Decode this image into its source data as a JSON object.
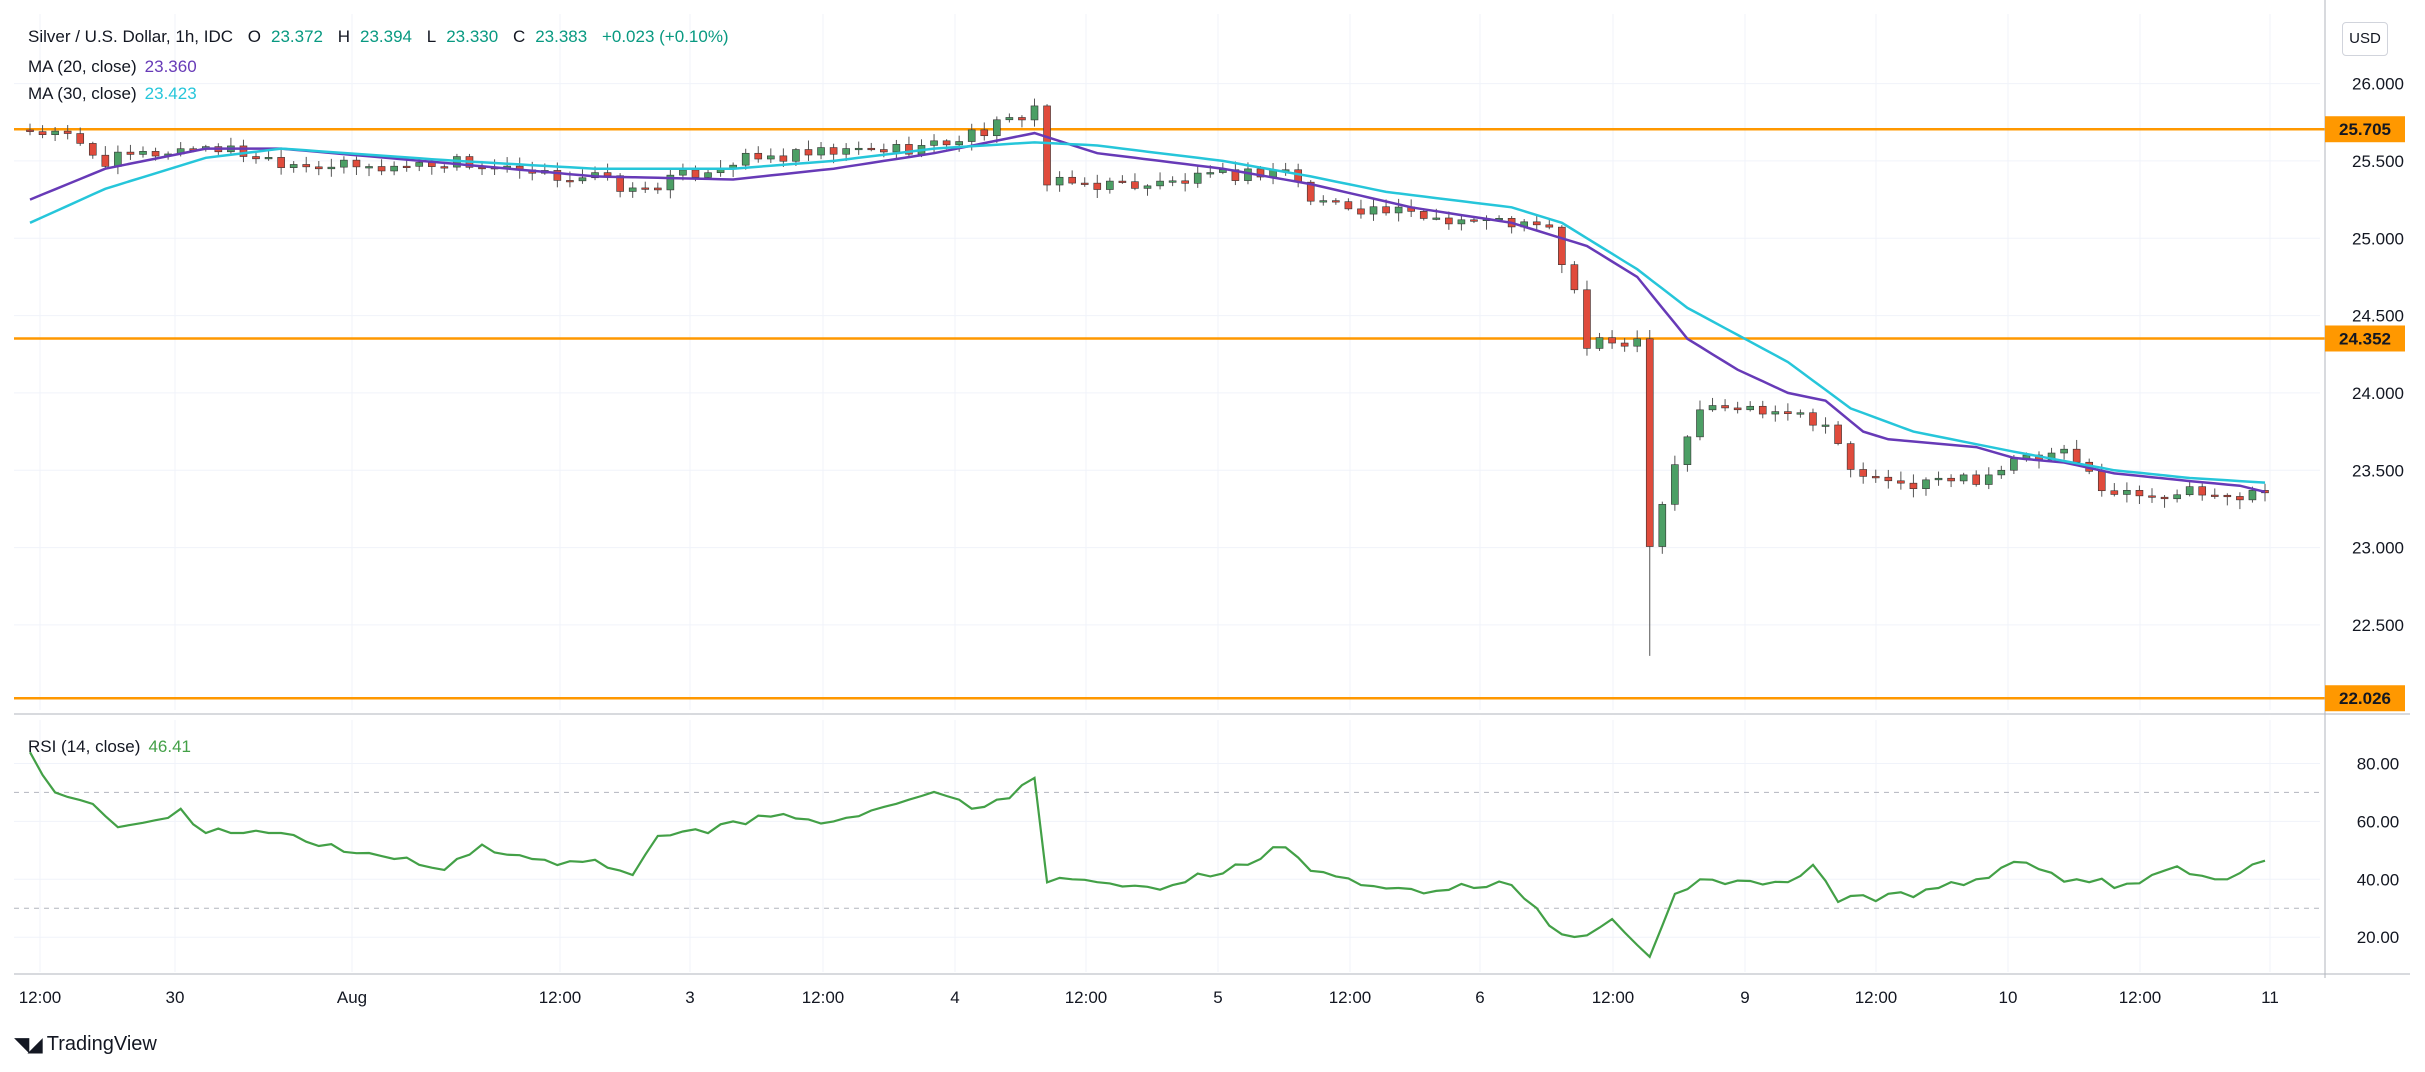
{
  "header": {
    "symbol_line": "Silver / U.S. Dollar, 1h, IDC",
    "open_label": "O",
    "open": "23.372",
    "high_label": "H",
    "high": "23.394",
    "low_label": "L",
    "low": "23.330",
    "close_label": "C",
    "close": "23.383",
    "change": "+0.023 (+0.10%)"
  },
  "ma20": {
    "label": "MA (20, close)",
    "value": "23.360",
    "color": "#673ab7"
  },
  "ma30": {
    "label": "MA (30, close)",
    "value": "23.423",
    "color": "#26c6da"
  },
  "rsi": {
    "label": "RSI (14, close)",
    "value": "46.41",
    "color": "#43a047"
  },
  "currency_button": "USD",
  "brand": "TradingView",
  "colors": {
    "up": "#4c9f65",
    "down": "#e04b3c",
    "level": "#ff9800",
    "grid": "#f0f3fa"
  },
  "chart_data": [
    {
      "type": "candlestick",
      "title": "Silver / U.S. Dollar, 1h, IDC",
      "x_ticks": [
        "12:00",
        "30",
        "Aug",
        "12:00",
        "3",
        "12:00",
        "4",
        "12:00",
        "5",
        "12:00",
        "6",
        "12:00",
        "9",
        "12:00",
        "10",
        "12:00",
        "11"
      ],
      "y_ticks": [
        "26.000",
        "25.500",
        "25.000",
        "24.500",
        "24.000",
        "23.500",
        "23.000",
        "22.500"
      ],
      "ylim": [
        21.95,
        26.45
      ],
      "levels": [
        {
          "value": 25.705,
          "label": "25.705"
        },
        {
          "value": 24.352,
          "label": "24.352"
        },
        {
          "value": 22.026,
          "label": "22.026"
        }
      ],
      "path_keypoints": [
        [
          0,
          25.7
        ],
        [
          3,
          25.65
        ],
        [
          6,
          25.5
        ],
        [
          14,
          25.6
        ],
        [
          20,
          25.5
        ],
        [
          27,
          25.45
        ],
        [
          34,
          25.5
        ],
        [
          40,
          25.4
        ],
        [
          45,
          25.4
        ],
        [
          48,
          25.3
        ],
        [
          56,
          25.5
        ],
        [
          64,
          25.55
        ],
        [
          72,
          25.6
        ],
        [
          78,
          25.75
        ],
        [
          80,
          25.85
        ],
        [
          81,
          25.35
        ],
        [
          90,
          25.35
        ],
        [
          100,
          25.45
        ],
        [
          102,
          25.25
        ],
        [
          110,
          25.15
        ],
        [
          118,
          25.1
        ],
        [
          121,
          25.05
        ],
        [
          123,
          24.65
        ],
        [
          124,
          24.3
        ],
        [
          128,
          24.35
        ],
        [
          129,
          23.05
        ],
        [
          131,
          23.55
        ],
        [
          133,
          23.9
        ],
        [
          140,
          23.9
        ],
        [
          143,
          23.8
        ],
        [
          145,
          23.5
        ],
        [
          148,
          23.4
        ],
        [
          155,
          23.45
        ],
        [
          158,
          23.55
        ],
        [
          162,
          23.6
        ],
        [
          166,
          23.35
        ],
        [
          172,
          23.35
        ],
        [
          176,
          23.33
        ],
        [
          178,
          23.38
        ]
      ],
      "big_wick_low": 22.3,
      "series": [
        {
          "name": "MA (20, close)",
          "color": "#673ab7",
          "keypoints": [
            [
              0,
              25.25
            ],
            [
              6,
              25.45
            ],
            [
              14,
              25.58
            ],
            [
              20,
              25.58
            ],
            [
              34,
              25.48
            ],
            [
              45,
              25.4
            ],
            [
              56,
              25.38
            ],
            [
              64,
              25.45
            ],
            [
              72,
              25.55
            ],
            [
              80,
              25.68
            ],
            [
              85,
              25.55
            ],
            [
              95,
              25.45
            ],
            [
              102,
              25.35
            ],
            [
              110,
              25.2
            ],
            [
              118,
              25.1
            ],
            [
              124,
              24.95
            ],
            [
              128,
              24.75
            ],
            [
              132,
              24.35
            ],
            [
              136,
              24.15
            ],
            [
              140,
              24.0
            ],
            [
              143,
              23.95
            ],
            [
              146,
              23.75
            ],
            [
              148,
              23.7
            ],
            [
              155,
              23.65
            ],
            [
              158,
              23.58
            ],
            [
              162,
              23.55
            ],
            [
              166,
              23.48
            ],
            [
              172,
              23.43
            ],
            [
              176,
              23.4
            ],
            [
              178,
              23.36
            ]
          ]
        },
        {
          "name": "MA (30, close)",
          "color": "#26c6da",
          "keypoints": [
            [
              0,
              25.1
            ],
            [
              6,
              25.32
            ],
            [
              14,
              25.52
            ],
            [
              20,
              25.58
            ],
            [
              34,
              25.5
            ],
            [
              45,
              25.45
            ],
            [
              56,
              25.45
            ],
            [
              64,
              25.5
            ],
            [
              72,
              25.58
            ],
            [
              80,
              25.62
            ],
            [
              85,
              25.6
            ],
            [
              95,
              25.5
            ],
            [
              102,
              25.4
            ],
            [
              108,
              25.3
            ],
            [
              118,
              25.2
            ],
            [
              122,
              25.1
            ],
            [
              128,
              24.8
            ],
            [
              132,
              24.55
            ],
            [
              140,
              24.2
            ],
            [
              145,
              23.9
            ],
            [
              150,
              23.75
            ],
            [
              158,
              23.62
            ],
            [
              166,
              23.5
            ],
            [
              172,
              23.45
            ],
            [
              178,
              23.42
            ]
          ]
        }
      ]
    },
    {
      "type": "line",
      "title": "RSI (14, close)",
      "y_ticks": [
        "80.00",
        "60.00",
        "40.00",
        "20.00"
      ],
      "ylim": [
        8,
        95
      ],
      "bands": [
        70,
        30
      ],
      "series": [
        {
          "name": "RSI (14, close)",
          "color": "#43a047",
          "keypoints": [
            [
              0,
              82
            ],
            [
              2,
              70
            ],
            [
              5,
              66
            ],
            [
              7,
              58
            ],
            [
              12,
              62
            ],
            [
              14,
              56
            ],
            [
              20,
              56
            ],
            [
              24,
              50
            ],
            [
              28,
              48
            ],
            [
              32,
              44
            ],
            [
              36,
              50
            ],
            [
              40,
              47
            ],
            [
              44,
              46
            ],
            [
              48,
              42
            ],
            [
              50,
              55
            ],
            [
              54,
              58
            ],
            [
              58,
              62
            ],
            [
              64,
              60
            ],
            [
              68,
              65
            ],
            [
              72,
              70
            ],
            [
              76,
              65
            ],
            [
              80,
              75
            ],
            [
              81,
              41
            ],
            [
              85,
              39
            ],
            [
              90,
              37
            ],
            [
              96,
              43
            ],
            [
              100,
              51
            ],
            [
              102,
              44
            ],
            [
              106,
              38
            ],
            [
              112,
              36
            ],
            [
              118,
              38
            ],
            [
              121,
              24
            ],
            [
              123,
              18
            ],
            [
              126,
              26
            ],
            [
              129,
              13
            ],
            [
              131,
              35
            ],
            [
              133,
              40
            ],
            [
              140,
              39
            ],
            [
              142,
              45
            ],
            [
              144,
              34
            ],
            [
              148,
              35
            ],
            [
              154,
              38
            ],
            [
              158,
              46
            ],
            [
              162,
              41
            ],
            [
              166,
              37
            ],
            [
              170,
              43
            ],
            [
              175,
              40
            ],
            [
              178,
              46.41
            ]
          ]
        }
      ]
    }
  ]
}
